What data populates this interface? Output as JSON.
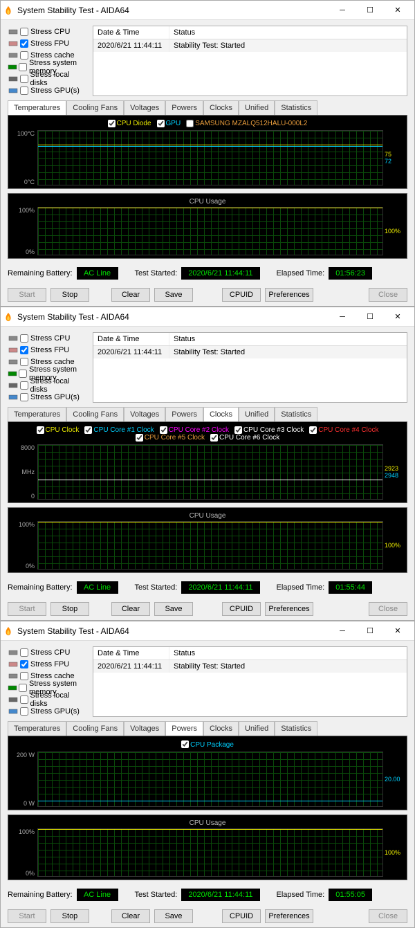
{
  "colors": {
    "green": "#00e000",
    "lime": "#6eff00",
    "yellow": "#e8e800",
    "cyan": "#00d0ff",
    "magenta": "#ff00ff",
    "red": "#ff3030",
    "white": "#ffffff",
    "orange": "#e89c3c",
    "grid": "#0a4a0a",
    "bg": "#000000"
  },
  "title": "System Stability Test - AIDA64",
  "stress": {
    "cpu": {
      "label": "Stress CPU",
      "checked": false
    },
    "fpu": {
      "label": "Stress FPU",
      "checked": true
    },
    "cache": {
      "label": "Stress cache",
      "checked": false
    },
    "mem": {
      "label": "Stress system memory",
      "checked": false
    },
    "disk": {
      "label": "Stress local disks",
      "checked": false
    },
    "gpu": {
      "label": "Stress GPU(s)",
      "checked": false
    }
  },
  "log": {
    "h1": "Date & Time",
    "h2": "Status",
    "v1": "2020/6/21 11:44:11",
    "v2": "Stability Test: Started"
  },
  "tabs": [
    "Temperatures",
    "Cooling Fans",
    "Voltages",
    "Powers",
    "Clocks",
    "Unified",
    "Statistics"
  ],
  "windows": [
    {
      "active_tab": 0,
      "main_chart": {
        "legend": [
          {
            "label": "CPU Diode",
            "color": "#e8e800",
            "checked": true
          },
          {
            "label": "GPU",
            "color": "#00d0ff",
            "checked": true
          },
          {
            "label": "SAMSUNG MZALQ512HALU-000L2",
            "color": "#e89c3c",
            "checked": false
          }
        ],
        "ymax": "100°C",
        "ymin": "0°C",
        "traces": [
          {
            "color": "#e8e800",
            "pct": 25
          },
          {
            "color": "#00d0ff",
            "pct": 28
          }
        ],
        "rvals": [
          {
            "v": "75",
            "color": "#e8e800"
          },
          {
            "v": "72",
            "color": "#00d0ff"
          }
        ]
      },
      "elapsed": "01:56:23"
    },
    {
      "active_tab": 4,
      "main_chart": {
        "legend": [
          {
            "label": "CPU Clock",
            "color": "#e8e800",
            "checked": true
          },
          {
            "label": "CPU Core #1 Clock",
            "color": "#00d0ff",
            "checked": true
          },
          {
            "label": "CPU Core #2 Clock",
            "color": "#ff00ff",
            "checked": true
          },
          {
            "label": "CPU Core #3 Clock",
            "color": "#ffffff",
            "checked": true
          },
          {
            "label": "CPU Core #4 Clock",
            "color": "#ff3030",
            "checked": true
          },
          {
            "label": "CPU Core #5 Clock",
            "color": "#e89c3c",
            "checked": true
          },
          {
            "label": "CPU Core #6 Clock",
            "color": "#ffffff",
            "checked": true
          }
        ],
        "ymax": "8000",
        "yunit": "MHz",
        "ymin": "0",
        "traces": [
          {
            "color": "#ffffff",
            "pct": 63
          }
        ],
        "rvals": [
          {
            "v": "2923",
            "color": "#e8e800"
          },
          {
            "v": "2948",
            "color": "#00d0ff"
          }
        ]
      },
      "elapsed": "01:55:44"
    },
    {
      "active_tab": 3,
      "main_chart": {
        "legend": [
          {
            "label": "CPU Package",
            "color": "#00d0ff",
            "checked": true
          }
        ],
        "ymax": "200 W",
        "ymin": "0 W",
        "traces": [
          {
            "color": "#00d0ff",
            "pct": 90
          }
        ],
        "rvals": [
          {
            "v": "20.00",
            "color": "#00d0ff"
          }
        ]
      },
      "elapsed": "01:55:05"
    }
  ],
  "cpu_chart": {
    "title": "CPU Usage",
    "ymax": "100%",
    "ymin": "0%",
    "rval": "100%",
    "trace_pct": 0
  },
  "status": {
    "battery_label": "Remaining Battery:",
    "battery_val": "AC Line",
    "started_label": "Test Started:",
    "started_val": "2020/6/21 11:44:11",
    "elapsed_label": "Elapsed Time:"
  },
  "buttons": {
    "start": "Start",
    "stop": "Stop",
    "clear": "Clear",
    "save": "Save",
    "cpuid": "CPUID",
    "prefs": "Preferences",
    "close": "Close"
  }
}
